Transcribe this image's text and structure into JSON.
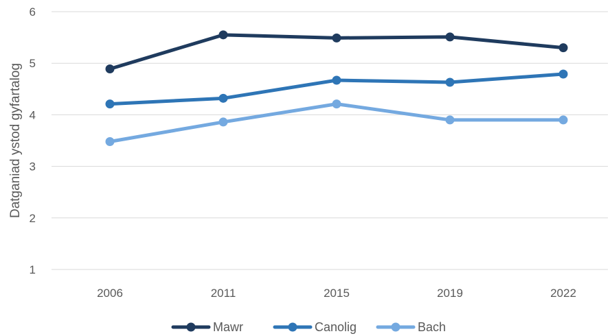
{
  "chart_data": {
    "type": "line",
    "title": "",
    "xlabel": "",
    "ylabel": "Datganiad ystod gyfartalog",
    "categories": [
      "2006",
      "2011",
      "2015",
      "2019",
      "2022"
    ],
    "ylim": [
      1,
      6
    ],
    "yticks": [
      1,
      2,
      3,
      4,
      5,
      6
    ],
    "grid": true,
    "legend": "bottom",
    "series": [
      {
        "name": "Mawr",
        "color": "#1f3b5e",
        "values": [
          4.89,
          5.55,
          5.49,
          5.51,
          5.3
        ]
      },
      {
        "name": "Canolig",
        "color": "#2e75b6",
        "values": [
          4.21,
          4.32,
          4.67,
          4.63,
          4.79
        ]
      },
      {
        "name": "Bach",
        "color": "#74a9e0",
        "values": [
          3.48,
          3.86,
          4.21,
          3.9,
          3.9
        ]
      }
    ]
  }
}
